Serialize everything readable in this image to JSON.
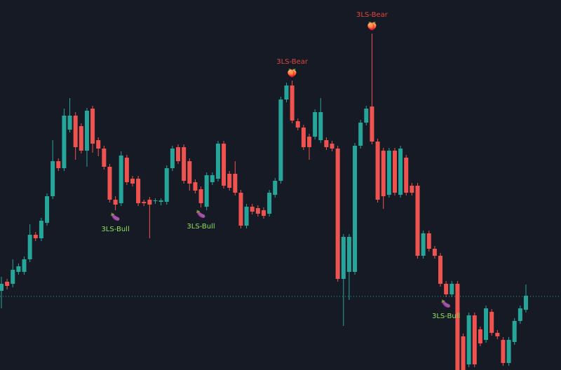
{
  "chart_data": {
    "type": "candlestick",
    "ylim": [
      0,
      528
    ],
    "up_color": "#26a69a",
    "down_color": "#ef5350",
    "open": [
      113,
      126,
      123,
      140,
      140,
      158,
      193,
      188,
      210,
      248,
      298,
      288,
      343,
      363,
      348,
      313,
      373,
      328,
      316,
      290,
      243,
      238,
      303,
      273,
      273,
      240,
      243,
      241,
      240,
      240,
      288,
      318,
      318,
      298,
      268,
      258,
      233,
      268,
      273,
      323,
      280,
      280,
      253,
      206,
      233,
      231,
      228,
      223,
      250,
      270,
      386,
      406,
      355,
      346,
      333,
      333,
      328,
      328,
      323,
      316,
      130,
      140,
      140,
      320,
      353,
      376,
      326,
      313,
      250,
      313,
      250,
      303,
      263,
      263,
      163,
      195,
      173,
      163,
      123,
      108,
      123,
      48,
      8,
      78,
      58,
      43,
      83,
      53,
      43,
      10,
      40,
      70,
      86
    ],
    "high": [
      133,
      130,
      158,
      152,
      162,
      208,
      197,
      217,
      252,
      328,
      302,
      373,
      388,
      368,
      352,
      374,
      377,
      332,
      320,
      294,
      248,
      312,
      307,
      277,
      277,
      243,
      247,
      245,
      245,
      292,
      320,
      322,
      322,
      302,
      272,
      262,
      282,
      282,
      327,
      327,
      284,
      298,
      257,
      237,
      237,
      235,
      232,
      257,
      274,
      390,
      410,
      413,
      359,
      350,
      337,
      372,
      388,
      332,
      327,
      320,
      194,
      194,
      324,
      357,
      377,
      480,
      330,
      317,
      317,
      317,
      320,
      307,
      267,
      267,
      199,
      199,
      177,
      167,
      127,
      127,
      127,
      52,
      82,
      82,
      62,
      92,
      87,
      57,
      47,
      47,
      74,
      92,
      122
    ],
    "low": [
      88,
      115,
      118,
      136,
      136,
      154,
      184,
      184,
      206,
      244,
      284,
      284,
      339,
      300,
      309,
      290,
      310,
      305,
      286,
      239,
      228,
      234,
      264,
      262,
      234,
      234,
      188,
      237,
      235,
      236,
      284,
      294,
      266,
      256,
      252,
      232,
      228,
      264,
      269,
      259,
      256,
      249,
      202,
      202,
      222,
      219,
      216,
      219,
      246,
      266,
      382,
      352,
      342,
      314,
      300,
      329,
      324,
      314,
      312,
      126,
      63,
      100,
      136,
      316,
      349,
      322,
      239,
      230,
      246,
      249,
      246,
      249,
      249,
      159,
      159,
      169,
      159,
      119,
      104,
      104,
      0,
      0,
      4,
      4,
      34,
      39,
      49,
      44,
      6,
      6,
      36,
      66,
      82
    ],
    "close": [
      123,
      120,
      143,
      148,
      158,
      193,
      188,
      213,
      248,
      298,
      288,
      363,
      363,
      318,
      313,
      370,
      323,
      316,
      290,
      243,
      236,
      306,
      268,
      266,
      238,
      238,
      236,
      242,
      242,
      288,
      316,
      298,
      270,
      266,
      256,
      238,
      278,
      278,
      323,
      263,
      260,
      253,
      206,
      233,
      226,
      223,
      220,
      253,
      270,
      386,
      406,
      356,
      346,
      318,
      318,
      368,
      368,
      318,
      316,
      130,
      190,
      190,
      320,
      353,
      373,
      326,
      243,
      248,
      313,
      253,
      316,
      253,
      253,
      163,
      195,
      173,
      163,
      123,
      108,
      123,
      0,
      0,
      78,
      8,
      38,
      88,
      53,
      48,
      10,
      43,
      70,
      88,
      106
    ],
    "price_line": 105,
    "bull_color": "#8ee25f",
    "bear_color": "#e0463f",
    "annotations": [
      {
        "candle": 20,
        "kind": "bull",
        "icon": "🍆",
        "label": "3LS-Bull"
      },
      {
        "candle": 35,
        "kind": "bull",
        "icon": "🍆",
        "label": "3LS-Bull"
      },
      {
        "candle": 51,
        "kind": "bear",
        "icon": "🍑",
        "label": "3LS-Bear"
      },
      {
        "candle": 65,
        "kind": "bear",
        "icon": "🍑",
        "label": "3LS-Bear"
      },
      {
        "candle": 78,
        "kind": "bull",
        "icon": "🍆",
        "label": "3LS-Bull"
      }
    ]
  }
}
